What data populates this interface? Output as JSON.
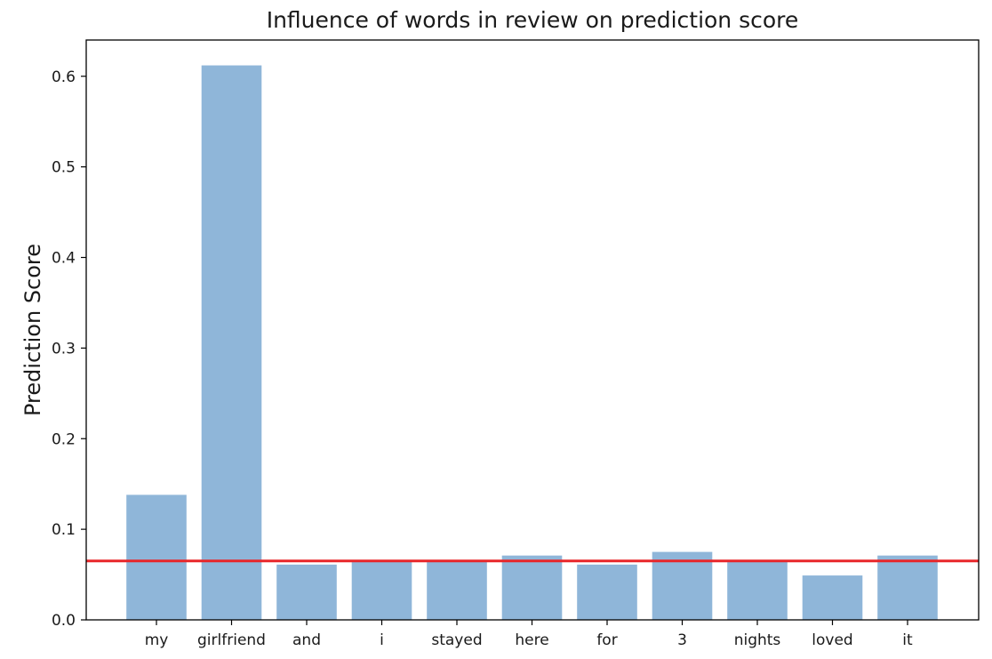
{
  "chart_data": {
    "type": "bar",
    "title": "Influence of words in review on prediction score",
    "xlabel": "",
    "ylabel": "Prediction Score",
    "categories": [
      "my",
      "girlfriend",
      "and",
      "i",
      "stayed",
      "here",
      "for",
      "3",
      "nights",
      "loved",
      "it"
    ],
    "values": [
      0.138,
      0.612,
      0.061,
      0.065,
      0.065,
      0.071,
      0.061,
      0.075,
      0.066,
      0.049,
      0.071
    ],
    "ylim": [
      0,
      0.64
    ],
    "yticks": [
      0.0,
      0.1,
      0.2,
      0.3,
      0.4,
      0.5,
      0.6
    ],
    "ytick_labels": [
      "0.0",
      "0.1",
      "0.2",
      "0.3",
      "0.4",
      "0.5",
      "0.6"
    ],
    "reference_line": {
      "y": 0.065,
      "color": "#e8262a"
    },
    "bar_color": "#8fb6d9",
    "grid": false,
    "legend": "none"
  }
}
